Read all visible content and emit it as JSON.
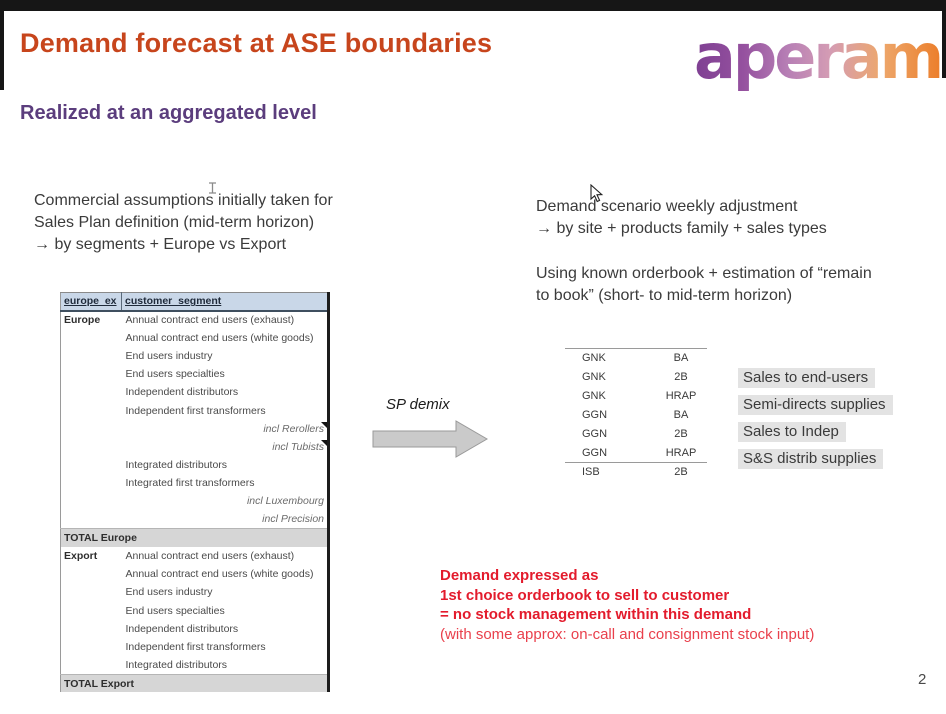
{
  "slide": {
    "title": "Demand forecast at ASE boundaries",
    "subtitle": "Realized at an aggregated level",
    "logo_text": "aperam",
    "page_number": "2"
  },
  "colors": {
    "title_accent": "#c7451c",
    "subtitle_accent": "#5b3d7d",
    "red_emphasis": "#e31b2c",
    "table_header_bg": "#c9d7e8",
    "total_row_bg": "#d6d6d6",
    "sales_label_bg": "#e3e3e3",
    "arrow_fill": "#cacaca"
  },
  "left_note": {
    "lines": [
      "Commercial assumptions initially taken for",
      "Sales Plan definition (mid-term horizon)",
      "→ by segments + Europe vs Export"
    ]
  },
  "right_note": {
    "para1_lines": [
      "Demand scenario weekly adjustment",
      "→ by site + products family + sales types"
    ],
    "para2_lines": [
      "Using known orderbook + estimation of “remain",
      "to book” (short- to mid-term horizon)"
    ]
  },
  "sp_demix_label": "SP demix",
  "segment_table": {
    "headers": [
      "europe_ex",
      "customer_segment"
    ],
    "rows": [
      {
        "group": "Europe",
        "label": "Annual contract end users (exhaust)",
        "style": "normal"
      },
      {
        "group": "",
        "label": "Annual contract end users (white goods)",
        "style": "normal"
      },
      {
        "group": "",
        "label": "End users industry",
        "style": "normal"
      },
      {
        "group": "",
        "label": "End users specialties",
        "style": "normal"
      },
      {
        "group": "",
        "label": "Independent distributors",
        "style": "normal"
      },
      {
        "group": "",
        "label": "Independent first transformers",
        "style": "normal"
      },
      {
        "group": "",
        "label": "incl Rerollers",
        "style": "incl",
        "marker": true
      },
      {
        "group": "",
        "label": "incl Tubists",
        "style": "incl",
        "marker": true
      },
      {
        "group": "",
        "label": "Integrated distributors",
        "style": "normal"
      },
      {
        "group": "",
        "label": "Integrated first transformers",
        "style": "normal"
      },
      {
        "group": "",
        "label": "incl Luxembourg",
        "style": "incl"
      },
      {
        "group": "",
        "label": "incl Precision",
        "style": "incl"
      },
      {
        "group": "TOTAL Europe",
        "label": "",
        "style": "total"
      },
      {
        "group": "Export",
        "label": "Annual contract end users (exhaust)",
        "style": "normal"
      },
      {
        "group": "",
        "label": "Annual contract end users (white goods)",
        "style": "normal"
      },
      {
        "group": "",
        "label": "End users industry",
        "style": "normal"
      },
      {
        "group": "",
        "label": "End users specialties",
        "style": "normal"
      },
      {
        "group": "",
        "label": "Independent distributors",
        "style": "normal"
      },
      {
        "group": "",
        "label": "Independent first transformers",
        "style": "normal"
      },
      {
        "group": "",
        "label": "Integrated distributors",
        "style": "normal"
      },
      {
        "group": "TOTAL Export",
        "label": "",
        "style": "total"
      }
    ]
  },
  "site_table": {
    "rows": [
      {
        "site": "GNK",
        "product": "BA"
      },
      {
        "site": "GNK",
        "product": "2B"
      },
      {
        "site": "GNK",
        "product": "HRAP"
      },
      {
        "site": "GGN",
        "product": "BA"
      },
      {
        "site": "GGN",
        "product": "2B"
      },
      {
        "site": "GGN",
        "product": "HRAP"
      },
      {
        "site": "ISB",
        "product": "2B",
        "separator": true
      }
    ]
  },
  "sales_types": [
    "Sales to end-users",
    "Semi-directs supplies",
    "Sales to Indep",
    "S&S distrib supplies"
  ],
  "demand_note": {
    "bold_lines": [
      "Demand expressed as",
      "1st choice orderbook to sell to customer",
      "= no stock management within this demand"
    ],
    "light_line": "(with some approx: on-call and consignment stock input)"
  }
}
